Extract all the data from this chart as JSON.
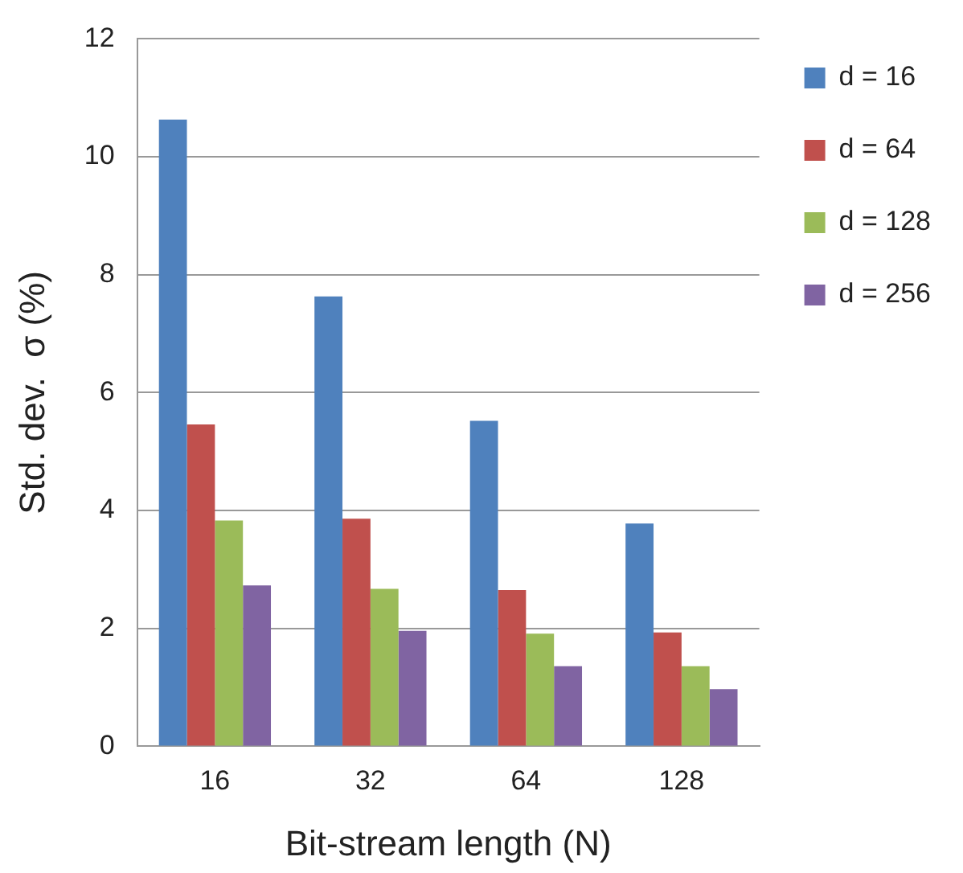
{
  "chart_data": {
    "type": "bar",
    "xlabel": "Bit-stream length (N)",
    "ylabel": "Std. dev.  σ (%)",
    "categories": [
      "16",
      "32",
      "64",
      "128"
    ],
    "series": [
      {
        "name": "d = 16",
        "color": "#4f81bd",
        "values": [
          10.63,
          7.63,
          5.52,
          3.78
        ]
      },
      {
        "name": "d = 64",
        "color": "#c0504d",
        "values": [
          5.46,
          3.86,
          2.65,
          1.93
        ]
      },
      {
        "name": "d = 128",
        "color": "#9bbb59",
        "values": [
          3.83,
          2.67,
          1.91,
          1.36
        ]
      },
      {
        "name": "d = 256",
        "color": "#8064a2",
        "values": [
          2.73,
          1.96,
          1.36,
          0.97
        ]
      }
    ],
    "ylim": [
      0,
      12
    ],
    "yticks": [
      0,
      2,
      4,
      6,
      8,
      10,
      12
    ],
    "grid": "y",
    "legend": "right"
  }
}
